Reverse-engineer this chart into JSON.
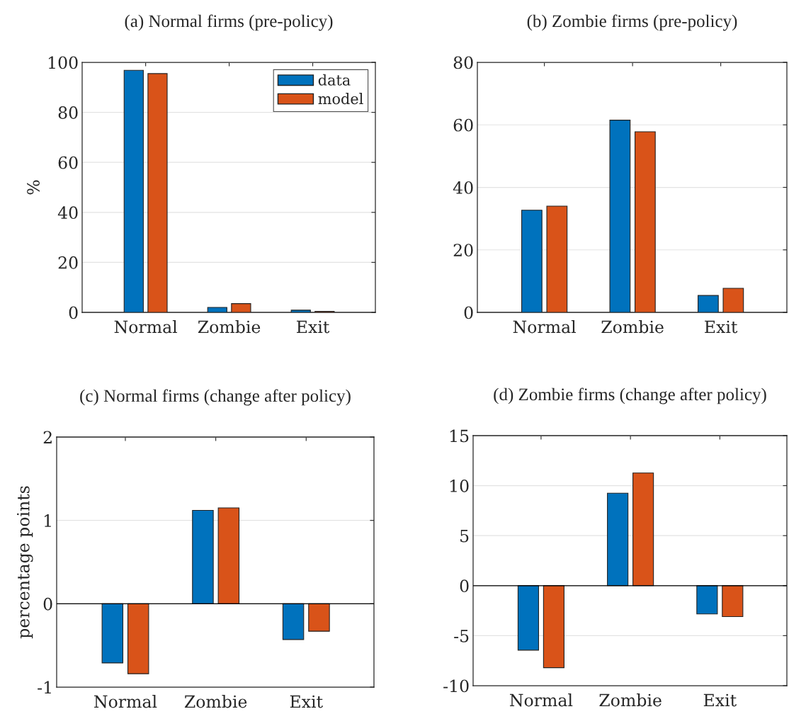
{
  "chart_data": [
    {
      "type": "bar",
      "title": "(a) Normal firms (pre-policy)",
      "ylabel": "%",
      "categories": [
        "Normal",
        "Zombie",
        "Exit"
      ],
      "ylim": [
        0,
        100
      ],
      "yticks": [
        0,
        20,
        40,
        60,
        80,
        100
      ],
      "grid": "y",
      "legend": "top right",
      "series": [
        {
          "name": "data",
          "color": "#0072bd",
          "values": [
            96.8,
            2.0,
            0.9
          ]
        },
        {
          "name": "model",
          "color": "#d95319",
          "values": [
            95.5,
            3.5,
            0.4
          ]
        }
      ]
    },
    {
      "type": "bar",
      "title": "(b) Zombie firms (pre-policy)",
      "categories": [
        "Normal",
        "Zombie",
        "Exit"
      ],
      "ylim": [
        0,
        80
      ],
      "yticks": [
        0,
        20,
        40,
        60,
        80
      ],
      "grid": "y",
      "series": [
        {
          "color": "#0072bd",
          "values": [
            32.7,
            61.5,
            5.4
          ]
        },
        {
          "color": "#d95319",
          "values": [
            34.0,
            57.8,
            7.7
          ]
        }
      ]
    },
    {
      "type": "bar",
      "title": "(c) Normal firms (change after policy)",
      "ylabel": "percentage points",
      "categories": [
        "Normal",
        "Zombie",
        "Exit"
      ],
      "ylim": [
        -1,
        2
      ],
      "yticks": [
        -1,
        0,
        1,
        2
      ],
      "grid": "y",
      "ref_lines": [
        {
          "axis": "y",
          "value": 0,
          "color": "#000000"
        }
      ],
      "series": [
        {
          "color": "#0072bd",
          "values": [
            -0.71,
            1.12,
            -0.43
          ]
        },
        {
          "color": "#d95319",
          "values": [
            -0.84,
            1.15,
            -0.33
          ]
        }
      ]
    },
    {
      "type": "bar",
      "title": "(d) Zombie firms (change after policy)",
      "categories": [
        "Normal",
        "Zombie",
        "Exit"
      ],
      "ylim": [
        -10,
        15
      ],
      "yticks": [
        -10,
        -5,
        0,
        5,
        10,
        15
      ],
      "grid": "y",
      "ref_lines": [
        {
          "axis": "y",
          "value": 0,
          "color": "#000000"
        }
      ],
      "series": [
        {
          "color": "#0072bd",
          "values": [
            -6.45,
            9.25,
            -2.83
          ]
        },
        {
          "color": "#d95319",
          "values": [
            -8.2,
            11.26,
            -3.09
          ]
        }
      ]
    }
  ]
}
